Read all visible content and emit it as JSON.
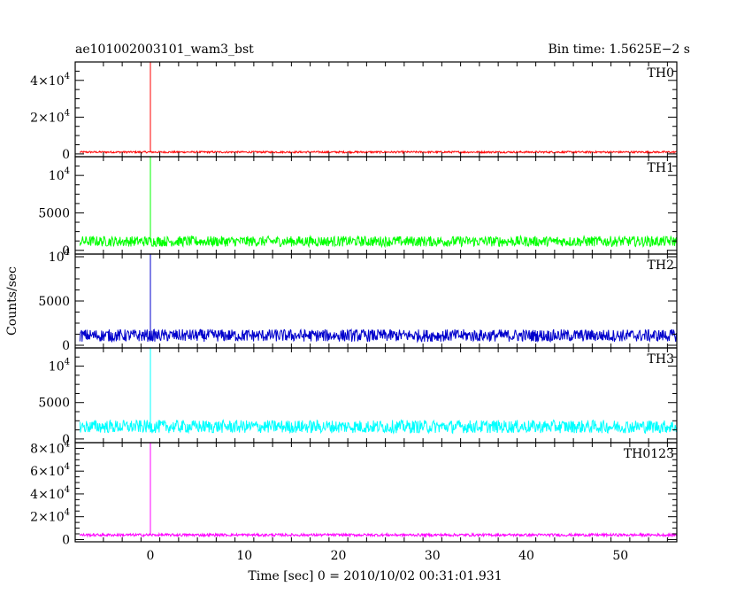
{
  "chart_data": {
    "type": "line",
    "title_left": "ae101002003101_wam3_bst",
    "title_right": "Bin time: 1.5625E−2 s",
    "xlabel": "Time [sec] 0 = 2010/10/02 00:31:01.931",
    "ylabel": "Counts/sec",
    "xlim": [
      -8,
      56
    ],
    "x_ticks": [
      0,
      10,
      20,
      30,
      40,
      50
    ],
    "x_tick_labels": [
      "0",
      "10",
      "20",
      "30",
      "40",
      "50"
    ],
    "data_range": [
      -7.5,
      56
    ],
    "spike_x": 0,
    "panels": [
      {
        "name": "TH0",
        "color": "#ff0000",
        "ylim": [
          -1500,
          50000
        ],
        "ticks": [
          {
            "v": 0,
            "base": "0",
            "exp": ""
          },
          {
            "v": 20000,
            "base": "2×10",
            "exp": "4"
          },
          {
            "v": 40000,
            "base": "4×10",
            "exp": "4"
          }
        ],
        "baseline": 1000,
        "noise": 500,
        "spike": 50000
      },
      {
        "name": "TH1",
        "color": "#00ff00",
        "ylim": [
          -500,
          12500
        ],
        "ticks": [
          {
            "v": 0,
            "base": "0",
            "exp": ""
          },
          {
            "v": 5000,
            "base": "5000",
            "exp": ""
          },
          {
            "v": 10000,
            "base": "10",
            "exp": "4"
          }
        ],
        "baseline": 1200,
        "noise": 700,
        "spike": 12500
      },
      {
        "name": "TH2",
        "color": "#0000cc",
        "ylim": [
          -300,
          10300
        ],
        "ticks": [
          {
            "v": 0,
            "base": "0",
            "exp": ""
          },
          {
            "v": 5000,
            "base": "5000",
            "exp": ""
          },
          {
            "v": 10000,
            "base": "10",
            "exp": "4"
          }
        ],
        "baseline": 1100,
        "noise": 700,
        "spike": 10300
      },
      {
        "name": "TH3",
        "color": "#00ffff",
        "ylim": [
          -500,
          12500
        ],
        "ticks": [
          {
            "v": 0,
            "base": "0",
            "exp": ""
          },
          {
            "v": 5000,
            "base": "5000",
            "exp": ""
          },
          {
            "v": 10000,
            "base": "10",
            "exp": "4"
          }
        ],
        "baseline": 1700,
        "noise": 900,
        "spike": 12500
      },
      {
        "name": "TH0123",
        "color": "#ff00ff",
        "ylim": [
          -2000,
          85000
        ],
        "ticks": [
          {
            "v": 0,
            "base": "0",
            "exp": ""
          },
          {
            "v": 20000,
            "base": "2×10",
            "exp": "4"
          },
          {
            "v": 40000,
            "base": "4×10",
            "exp": "4"
          },
          {
            "v": 60000,
            "base": "6×10",
            "exp": "4"
          },
          {
            "v": 80000,
            "base": "8×10",
            "exp": "4"
          }
        ],
        "baseline": 4000,
        "noise": 1200,
        "spike": 85000
      }
    ]
  }
}
